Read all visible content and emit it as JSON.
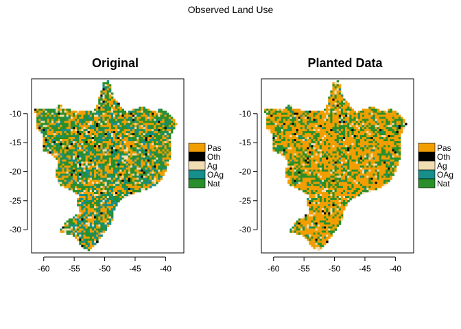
{
  "main_title": "Observed Land Use",
  "colors": {
    "Pas": "#f29e00",
    "Oth": "#000000",
    "Ag": "#f1ddb2",
    "OAg": "#168f8a",
    "Nat": "#2a8f2a"
  },
  "legend": [
    {
      "label": "Pas",
      "color_key": "Pas"
    },
    {
      "label": "Oth",
      "color_key": "Oth"
    },
    {
      "label": "Ag",
      "color_key": "Ag"
    },
    {
      "label": "OAg",
      "color_key": "OAg"
    },
    {
      "label": "Nat",
      "color_key": "Nat"
    }
  ],
  "axes": {
    "x_ticks": [
      "-60",
      "-55",
      "-50",
      "-45",
      "-40"
    ],
    "y_ticks": [
      "-10",
      "-15",
      "-20",
      "-25",
      "-30"
    ],
    "x_tick_values": [
      -60,
      -55,
      -50,
      -45,
      -40
    ],
    "y_tick_values": [
      -10,
      -15,
      -20,
      -25,
      -30
    ],
    "xlim": [
      -62,
      -37
    ],
    "ylim": [
      -34,
      -4
    ]
  },
  "panels": [
    {
      "title": "Original",
      "land_use_mix": {
        "Nat": 0.35,
        "Pas": 0.38,
        "OAg": 0.16,
        "Ag": 0.08,
        "Oth": 0.03
      }
    },
    {
      "title": "Planted Data",
      "land_use_mix": {
        "Nat": 0.3,
        "Pas": 0.58,
        "OAg": 0.02,
        "Ag": 0.07,
        "Oth": 0.03
      }
    }
  ]
}
